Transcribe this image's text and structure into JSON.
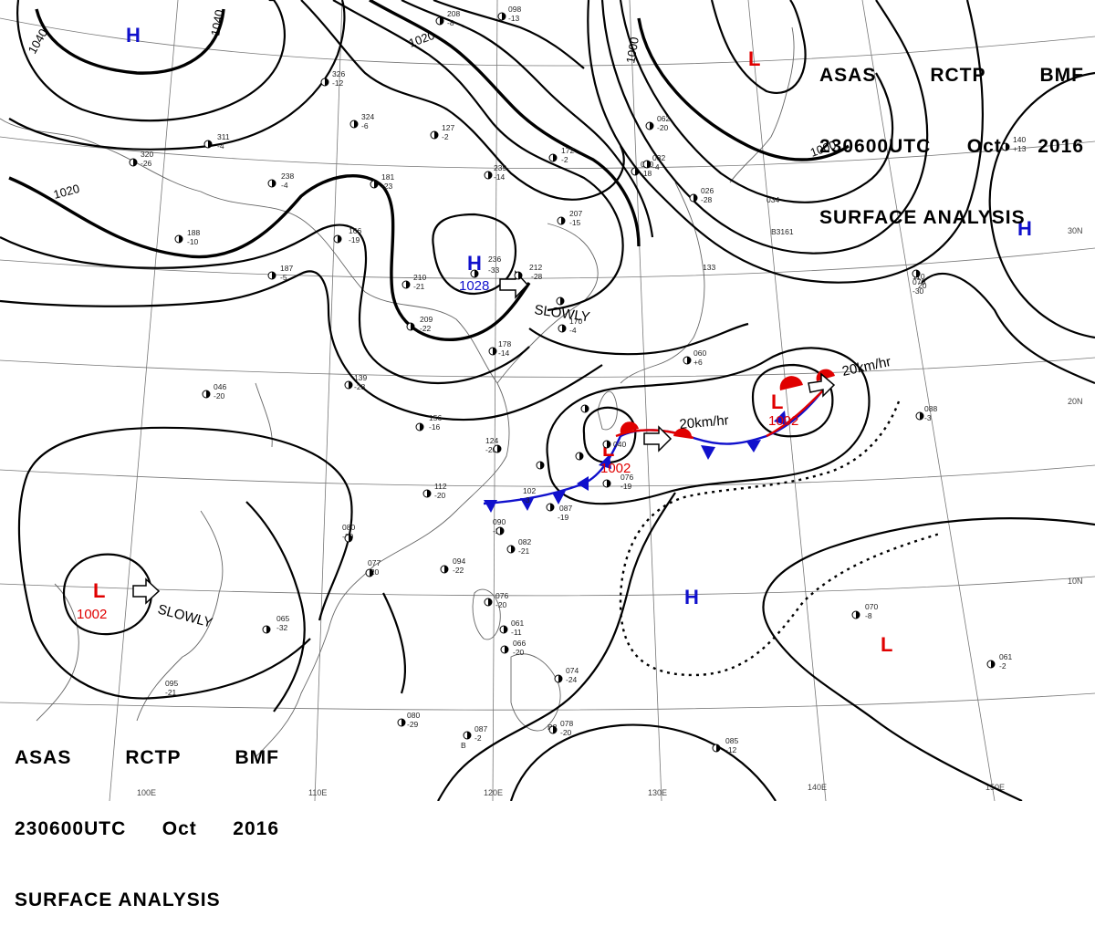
{
  "header": {
    "line1": [
      "ASAS",
      "RCTP",
      "BMF"
    ],
    "line2": [
      "230600UTC",
      "Oct",
      "2016"
    ],
    "line3": "SURFACE ANALYSIS"
  },
  "isobar_labels": [
    "1040",
    "1040",
    "1020",
    "1020",
    "1000",
    "1000"
  ],
  "pressure_systems": [
    {
      "type": "H",
      "value": "",
      "color": "#1010cc"
    },
    {
      "type": "L",
      "value": "",
      "color": "#e00000"
    },
    {
      "type": "H",
      "value": "1028",
      "color": "#1010cc"
    },
    {
      "type": "H",
      "value": "",
      "color": "#1010cc"
    },
    {
      "type": "L",
      "value": "1002",
      "color": "#e00000"
    },
    {
      "type": "L",
      "value": "1002",
      "color": "#e00000"
    },
    {
      "type": "L",
      "value": "1002",
      "color": "#e00000"
    },
    {
      "type": "H",
      "value": "",
      "color": "#1010cc"
    },
    {
      "type": "L",
      "value": "",
      "color": "#e00000"
    }
  ],
  "motions": [
    "SLOWLY",
    "20km/hr",
    "20km/hr",
    "SLOWLY"
  ],
  "lat_labels": [
    "30N",
    "20N",
    "10N"
  ],
  "lon_labels": [
    "100E",
    "110E",
    "120E",
    "130E",
    "140E",
    "150E"
  ],
  "station_labels": [
    "236",
    "-33",
    "1028",
    "212",
    "-28",
    "040",
    "076",
    "-19",
    "087",
    "-19",
    "102",
    "-3",
    "090",
    "-20",
    "082",
    "-21",
    "065",
    "-32",
    "080",
    "-20",
    "077",
    "-20",
    "094",
    "-22",
    "156",
    "-16",
    "124",
    "-20",
    "112",
    "-20",
    "139",
    "-28",
    "209",
    "-22",
    "210",
    "-21",
    "166",
    "-19",
    "181",
    "-23",
    "238",
    "-4",
    "127",
    "-2",
    "239",
    "-14",
    "207",
    "-15",
    "172",
    "-2",
    "170",
    "-4",
    "178",
    "-14",
    "133",
    "070",
    "-30",
    "110",
    "20",
    "088",
    "-3",
    "140",
    "+13",
    "070",
    "-8",
    "061",
    "-2",
    "085",
    "-12",
    "095",
    "-21",
    "080",
    "-29",
    "087",
    "-2",
    "078",
    "-20",
    "074",
    "-24",
    "076",
    "-20",
    "061",
    "-11",
    "066",
    "-20",
    "320",
    "-26",
    "311",
    "-4",
    "326",
    "-12",
    "324",
    "-6",
    "188",
    "-10",
    "187",
    "-5",
    "060",
    "+6",
    "046",
    "-20",
    "032",
    "-4",
    "034",
    "098",
    "-13",
    "090",
    "-18",
    "062",
    "-20",
    "026",
    "-28",
    "208",
    "-8",
    "B3161",
    "B2",
    "B"
  ],
  "colors": {
    "high": "#1010cc",
    "low": "#e00000",
    "cold_front": "#1010cc",
    "warm_front": "#e00000"
  }
}
